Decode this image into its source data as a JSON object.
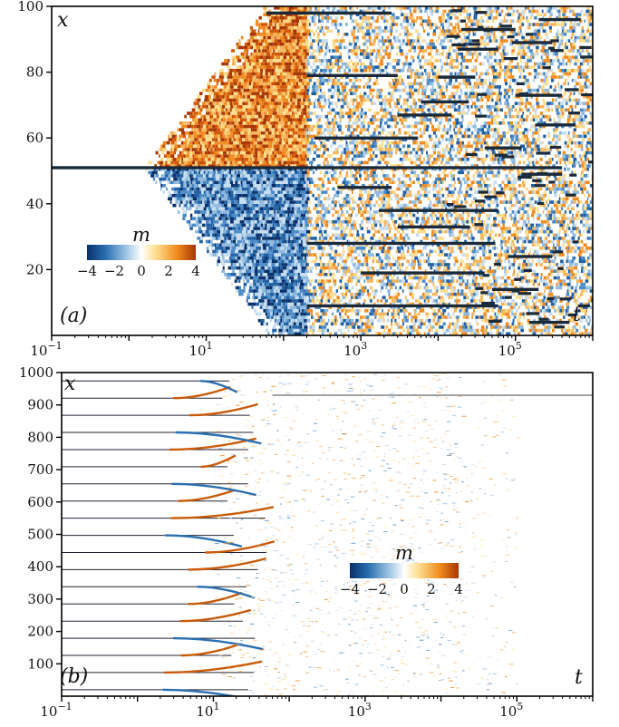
{
  "chart_data": [
    {
      "type": "heatmap",
      "panel_label": "(a)",
      "xlabel": "t",
      "ylabel": "x",
      "x_scale": "log",
      "xlim": [
        0.1,
        1000000
      ],
      "ylim": [
        0,
        100
      ],
      "x_ticks": [
        {
          "base": "10",
          "exp": "−1"
        },
        {
          "base": "10",
          "exp": "1"
        },
        {
          "base": "10",
          "exp": "3"
        },
        {
          "base": "10",
          "exp": "5"
        }
      ],
      "y_ticks": [
        "20",
        "40",
        "60",
        "80",
        "100"
      ],
      "colorbar": {
        "title": "m",
        "range": [
          -4,
          4
        ],
        "tick_labels": [
          "−4",
          "−2",
          "0",
          "2",
          "4"
        ],
        "colors": [
          "#08306b",
          "#2a6fb0",
          "#9ec4e3",
          "#ffffff",
          "#fddc8a",
          "#ef8a1f",
          "#a63603"
        ]
      },
      "domain_walls_x": [
        51,
        98,
        79,
        60,
        28,
        9
      ]
    },
    {
      "type": "heatmap",
      "panel_label": "(b)",
      "xlabel": "t",
      "ylabel": "x",
      "x_scale": "log",
      "xlim": [
        0.1,
        1000000
      ],
      "ylim": [
        0,
        1000
      ],
      "x_ticks": [
        {
          "base": "10",
          "exp": "−1"
        },
        {
          "base": "10",
          "exp": "1"
        },
        {
          "base": "10",
          "exp": "3"
        },
        {
          "base": "10",
          "exp": "5"
        }
      ],
      "y_ticks": [
        "100",
        "200",
        "300",
        "400",
        "500",
        "600",
        "700",
        "800",
        "900",
        "1000"
      ],
      "colorbar": {
        "title": "m",
        "range": [
          -4,
          4
        ],
        "tick_labels": [
          "−4",
          "−2",
          "0",
          "2",
          "4"
        ],
        "colors": [
          "#08306b",
          "#2a6fb0",
          "#9ec4e3",
          "#ffffff",
          "#fddc8a",
          "#ef8a1f",
          "#a63603"
        ]
      },
      "domain_walls_x": [
        930
      ]
    }
  ]
}
